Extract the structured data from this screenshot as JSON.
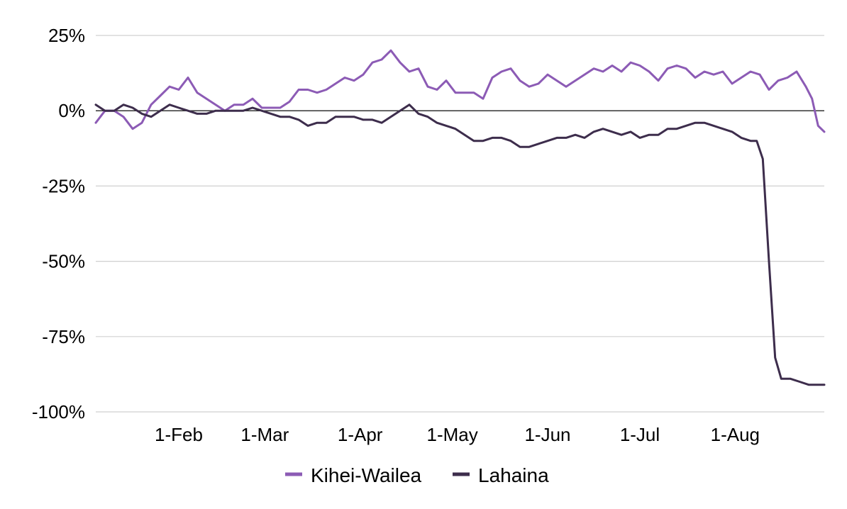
{
  "chart_data": {
    "type": "line",
    "title": "",
    "xlabel": "",
    "ylabel": "",
    "ylim": [
      -100,
      25
    ],
    "yticks": [
      25,
      0,
      -25,
      -50,
      -75,
      -100
    ],
    "ytick_labels": [
      "25%",
      "0%",
      "-25%",
      "-50%",
      "-75%",
      "-100%"
    ],
    "xlim": [
      "2023-01-05",
      "2023-08-30"
    ],
    "xticks": [
      "2023-02-01",
      "2023-03-01",
      "2023-04-01",
      "2023-05-01",
      "2023-06-01",
      "2023-07-01",
      "2023-08-01"
    ],
    "xtick_labels": [
      "1-Feb",
      "1-Mar",
      "1-Apr",
      "1-May",
      "1-Jun",
      "1-Jul",
      "1-Aug"
    ],
    "grid": true,
    "zero_line": true,
    "legend_position": "bottom",
    "series": [
      {
        "name": "Kihei-Wailea",
        "color": "#8c5bb5",
        "points": [
          [
            "2023-01-05",
            -4
          ],
          [
            "2023-01-08",
            0
          ],
          [
            "2023-01-11",
            0
          ],
          [
            "2023-01-14",
            -2
          ],
          [
            "2023-01-17",
            -6
          ],
          [
            "2023-01-20",
            -4
          ],
          [
            "2023-01-23",
            2
          ],
          [
            "2023-01-26",
            5
          ],
          [
            "2023-01-29",
            8
          ],
          [
            "2023-02-01",
            7
          ],
          [
            "2023-02-04",
            11
          ],
          [
            "2023-02-07",
            6
          ],
          [
            "2023-02-10",
            4
          ],
          [
            "2023-02-13",
            2
          ],
          [
            "2023-02-16",
            0
          ],
          [
            "2023-02-19",
            2
          ],
          [
            "2023-02-22",
            2
          ],
          [
            "2023-02-25",
            4
          ],
          [
            "2023-02-28",
            1
          ],
          [
            "2023-03-03",
            1
          ],
          [
            "2023-03-06",
            1
          ],
          [
            "2023-03-09",
            3
          ],
          [
            "2023-03-12",
            7
          ],
          [
            "2023-03-15",
            7
          ],
          [
            "2023-03-18",
            6
          ],
          [
            "2023-03-21",
            7
          ],
          [
            "2023-03-24",
            9
          ],
          [
            "2023-03-27",
            11
          ],
          [
            "2023-03-30",
            10
          ],
          [
            "2023-04-02",
            12
          ],
          [
            "2023-04-05",
            16
          ],
          [
            "2023-04-08",
            17
          ],
          [
            "2023-04-11",
            20
          ],
          [
            "2023-04-14",
            16
          ],
          [
            "2023-04-17",
            13
          ],
          [
            "2023-04-20",
            14
          ],
          [
            "2023-04-23",
            8
          ],
          [
            "2023-04-26",
            7
          ],
          [
            "2023-04-29",
            10
          ],
          [
            "2023-05-02",
            6
          ],
          [
            "2023-05-05",
            6
          ],
          [
            "2023-05-08",
            6
          ],
          [
            "2023-05-11",
            4
          ],
          [
            "2023-05-14",
            11
          ],
          [
            "2023-05-17",
            13
          ],
          [
            "2023-05-20",
            14
          ],
          [
            "2023-05-23",
            10
          ],
          [
            "2023-05-26",
            8
          ],
          [
            "2023-05-29",
            9
          ],
          [
            "2023-06-01",
            12
          ],
          [
            "2023-06-04",
            10
          ],
          [
            "2023-06-07",
            8
          ],
          [
            "2023-06-10",
            10
          ],
          [
            "2023-06-13",
            12
          ],
          [
            "2023-06-16",
            14
          ],
          [
            "2023-06-19",
            13
          ],
          [
            "2023-06-22",
            15
          ],
          [
            "2023-06-25",
            13
          ],
          [
            "2023-06-28",
            16
          ],
          [
            "2023-07-01",
            15
          ],
          [
            "2023-07-04",
            13
          ],
          [
            "2023-07-07",
            10
          ],
          [
            "2023-07-10",
            14
          ],
          [
            "2023-07-13",
            15
          ],
          [
            "2023-07-16",
            14
          ],
          [
            "2023-07-19",
            11
          ],
          [
            "2023-07-22",
            13
          ],
          [
            "2023-07-25",
            12
          ],
          [
            "2023-07-28",
            13
          ],
          [
            "2023-07-31",
            9
          ],
          [
            "2023-08-03",
            11
          ],
          [
            "2023-08-06",
            13
          ],
          [
            "2023-08-09",
            12
          ],
          [
            "2023-08-12",
            7
          ],
          [
            "2023-08-15",
            10
          ],
          [
            "2023-08-18",
            11
          ],
          [
            "2023-08-21",
            13
          ],
          [
            "2023-08-24",
            8
          ],
          [
            "2023-08-26",
            4
          ],
          [
            "2023-08-28",
            -5
          ],
          [
            "2023-08-30",
            -7
          ]
        ]
      },
      {
        "name": "Lahaina",
        "color": "#3d2d4c",
        "points": [
          [
            "2023-01-05",
            2
          ],
          [
            "2023-01-08",
            0
          ],
          [
            "2023-01-11",
            0
          ],
          [
            "2023-01-14",
            2
          ],
          [
            "2023-01-17",
            1
          ],
          [
            "2023-01-20",
            -1
          ],
          [
            "2023-01-23",
            -2
          ],
          [
            "2023-01-26",
            0
          ],
          [
            "2023-01-29",
            2
          ],
          [
            "2023-02-01",
            1
          ],
          [
            "2023-02-04",
            0
          ],
          [
            "2023-02-07",
            -1
          ],
          [
            "2023-02-10",
            -1
          ],
          [
            "2023-02-13",
            0
          ],
          [
            "2023-02-16",
            0
          ],
          [
            "2023-02-19",
            0
          ],
          [
            "2023-02-22",
            0
          ],
          [
            "2023-02-25",
            1
          ],
          [
            "2023-02-28",
            0
          ],
          [
            "2023-03-03",
            -1
          ],
          [
            "2023-03-06",
            -2
          ],
          [
            "2023-03-09",
            -2
          ],
          [
            "2023-03-12",
            -3
          ],
          [
            "2023-03-15",
            -5
          ],
          [
            "2023-03-18",
            -4
          ],
          [
            "2023-03-21",
            -4
          ],
          [
            "2023-03-24",
            -2
          ],
          [
            "2023-03-27",
            -2
          ],
          [
            "2023-03-30",
            -2
          ],
          [
            "2023-04-02",
            -3
          ],
          [
            "2023-04-05",
            -3
          ],
          [
            "2023-04-08",
            -4
          ],
          [
            "2023-04-11",
            -2
          ],
          [
            "2023-04-14",
            0
          ],
          [
            "2023-04-17",
            2
          ],
          [
            "2023-04-20",
            -1
          ],
          [
            "2023-04-23",
            -2
          ],
          [
            "2023-04-26",
            -4
          ],
          [
            "2023-04-29",
            -5
          ],
          [
            "2023-05-02",
            -6
          ],
          [
            "2023-05-05",
            -8
          ],
          [
            "2023-05-08",
            -10
          ],
          [
            "2023-05-11",
            -10
          ],
          [
            "2023-05-14",
            -9
          ],
          [
            "2023-05-17",
            -9
          ],
          [
            "2023-05-20",
            -10
          ],
          [
            "2023-05-23",
            -12
          ],
          [
            "2023-05-26",
            -12
          ],
          [
            "2023-05-29",
            -11
          ],
          [
            "2023-06-01",
            -10
          ],
          [
            "2023-06-04",
            -9
          ],
          [
            "2023-06-07",
            -9
          ],
          [
            "2023-06-10",
            -8
          ],
          [
            "2023-06-13",
            -9
          ],
          [
            "2023-06-16",
            -7
          ],
          [
            "2023-06-19",
            -6
          ],
          [
            "2023-06-22",
            -7
          ],
          [
            "2023-06-25",
            -8
          ],
          [
            "2023-06-28",
            -7
          ],
          [
            "2023-07-01",
            -9
          ],
          [
            "2023-07-04",
            -8
          ],
          [
            "2023-07-07",
            -8
          ],
          [
            "2023-07-10",
            -6
          ],
          [
            "2023-07-13",
            -6
          ],
          [
            "2023-07-16",
            -5
          ],
          [
            "2023-07-19",
            -4
          ],
          [
            "2023-07-22",
            -4
          ],
          [
            "2023-07-25",
            -5
          ],
          [
            "2023-07-28",
            -6
          ],
          [
            "2023-07-31",
            -7
          ],
          [
            "2023-08-03",
            -9
          ],
          [
            "2023-08-06",
            -10
          ],
          [
            "2023-08-08",
            -10
          ],
          [
            "2023-08-10",
            -16
          ],
          [
            "2023-08-12",
            -50
          ],
          [
            "2023-08-14",
            -82
          ],
          [
            "2023-08-16",
            -89
          ],
          [
            "2023-08-19",
            -89
          ],
          [
            "2023-08-22",
            -90
          ],
          [
            "2023-08-25",
            -91
          ],
          [
            "2023-08-30",
            -91
          ]
        ]
      }
    ]
  }
}
